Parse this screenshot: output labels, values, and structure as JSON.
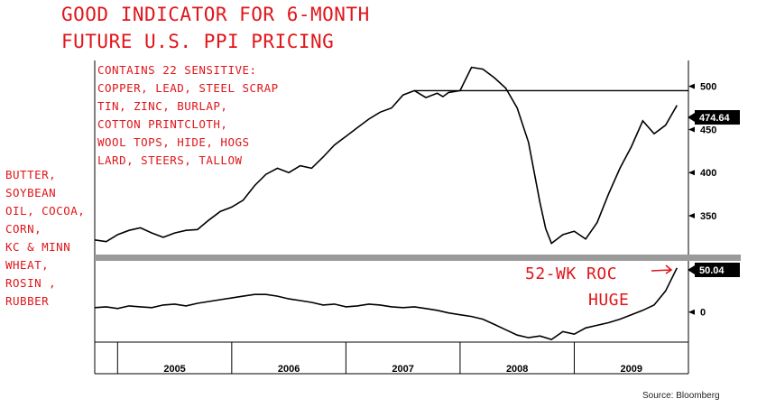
{
  "title": [
    "GOOD INDICATOR FOR 6-MONTH",
    "FUTURE U.S.  PPI  PRICING"
  ],
  "annotation_top": [
    "CONTAINS 22 SENSITIVE:",
    "COPPER, LEAD, STEEL SCRAP",
    "TIN, ZINC, BURLAP,",
    "COTTON PRINTCLOTH,",
    "WOOL TOPS, HIDE, HOGS",
    "LARD, STEERS,  TALLOW"
  ],
  "annotation_left": [
    "BUTTER,",
    "SOYBEAN",
    "OIL, COCOA,",
    "CORN,",
    "KC & MINN",
    "WHEAT,",
    "ROSIN ,",
    "RUBBER"
  ],
  "roc_label": "52-WK ROC",
  "huge_label": "HUGE",
  "source": "Source: Bloomberg",
  "colors": {
    "annotation": "#e0161b",
    "line": "#000000",
    "divider": "#9a9a9a"
  },
  "chart_data": [
    {
      "type": "line",
      "title": "",
      "x_unit": "year (decimal)",
      "xlim": [
        2004.8,
        2010.0
      ],
      "ylim": [
        305,
        530
      ],
      "yticks": [
        350,
        400,
        450,
        500
      ],
      "last_value_label": "474.64",
      "reference_line": 495,
      "x": [
        2004.8,
        2004.9,
        2005.0,
        2005.1,
        2005.2,
        2005.3,
        2005.4,
        2005.5,
        2005.6,
        2005.7,
        2005.8,
        2005.9,
        2006.0,
        2006.1,
        2006.2,
        2006.3,
        2006.4,
        2006.5,
        2006.6,
        2006.7,
        2006.8,
        2006.9,
        2007.0,
        2007.1,
        2007.2,
        2007.3,
        2007.4,
        2007.5,
        2007.6,
        2007.7,
        2007.8,
        2007.85,
        2007.9,
        2008.0,
        2008.1,
        2008.2,
        2008.3,
        2008.4,
        2008.5,
        2008.6,
        2008.7,
        2008.75,
        2008.8,
        2008.9,
        2009.0,
        2009.1,
        2009.2,
        2009.3,
        2009.4,
        2009.5,
        2009.6,
        2009.7,
        2009.8,
        2009.9
      ],
      "values": [
        322,
        320,
        328,
        333,
        336,
        330,
        325,
        330,
        333,
        334,
        345,
        355,
        360,
        368,
        385,
        398,
        405,
        400,
        408,
        405,
        418,
        432,
        442,
        452,
        462,
        470,
        475,
        490,
        495,
        487,
        492,
        488,
        493,
        495,
        522,
        520,
        510,
        498,
        475,
        435,
        365,
        335,
        318,
        328,
        332,
        323,
        342,
        375,
        405,
        430,
        460,
        445,
        455,
        478
      ]
    },
    {
      "type": "line",
      "title": "52-WK ROC",
      "x_unit": "year (decimal)",
      "xlim": [
        2004.8,
        2010.0
      ],
      "ylim": [
        -34,
        58
      ],
      "yticks": [
        0
      ],
      "last_value_label": "50.04",
      "x": [
        2004.8,
        2004.9,
        2005.0,
        2005.1,
        2005.2,
        2005.3,
        2005.4,
        2005.5,
        2005.6,
        2005.7,
        2005.8,
        2005.9,
        2006.0,
        2006.1,
        2006.2,
        2006.3,
        2006.4,
        2006.5,
        2006.6,
        2006.7,
        2006.8,
        2006.9,
        2007.0,
        2007.1,
        2007.2,
        2007.3,
        2007.4,
        2007.5,
        2007.6,
        2007.7,
        2007.8,
        2007.9,
        2008.0,
        2008.1,
        2008.2,
        2008.3,
        2008.4,
        2008.5,
        2008.6,
        2008.7,
        2008.8,
        2008.9,
        2009.0,
        2009.1,
        2009.2,
        2009.3,
        2009.4,
        2009.5,
        2009.6,
        2009.7,
        2009.8,
        2009.9
      ],
      "values": [
        5,
        6,
        4,
        7,
        6,
        5,
        8,
        9,
        7,
        10,
        12,
        14,
        16,
        18,
        20,
        20,
        18,
        15,
        13,
        11,
        8,
        9,
        6,
        7,
        9,
        8,
        6,
        5,
        6,
        4,
        2,
        -1,
        -3,
        -5,
        -8,
        -14,
        -20,
        -26,
        -29,
        -27,
        -31,
        -22,
        -25,
        -18,
        -15,
        -12,
        -8,
        -3,
        2,
        8,
        24,
        50
      ]
    }
  ],
  "x_tick_labels": [
    "2005",
    "2006",
    "2007",
    "2008",
    "2009"
  ],
  "x_tick_positions": [
    2005.5,
    2006.5,
    2007.5,
    2008.5,
    2009.5
  ],
  "x_year_boundaries": [
    2005,
    2006,
    2007,
    2008,
    2009
  ]
}
